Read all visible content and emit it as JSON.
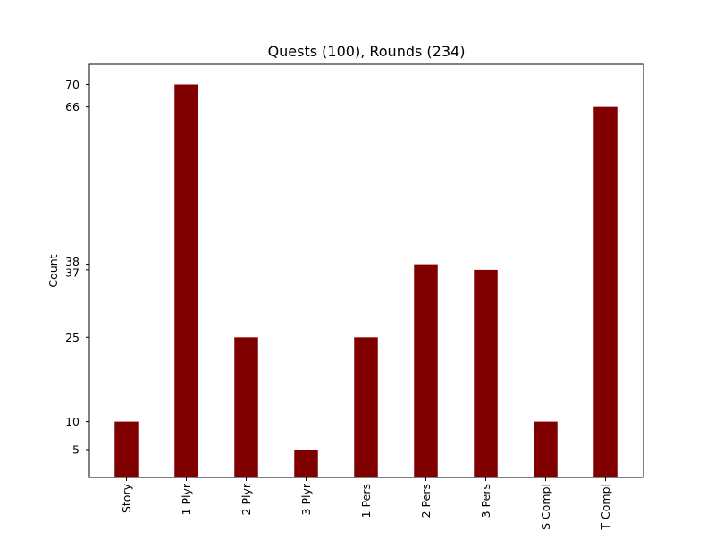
{
  "chart_data": {
    "type": "bar",
    "title": "Quests (100), Rounds (234)",
    "xlabel": "",
    "ylabel": "Count",
    "categories": [
      "Story",
      "1 Plyr",
      "2 Plyr",
      "3 Plyr",
      "1 Pers",
      "2 Pers",
      "3 Pers",
      "S Compl",
      "T Compl"
    ],
    "values": [
      10,
      70,
      25,
      5,
      25,
      38,
      37,
      10,
      66
    ],
    "yticks": [
      5,
      10,
      25,
      37,
      38,
      66,
      70
    ],
    "ylim": [
      0,
      70
    ],
    "bar_color": "#800000",
    "grid": false,
    "legend": "none"
  }
}
